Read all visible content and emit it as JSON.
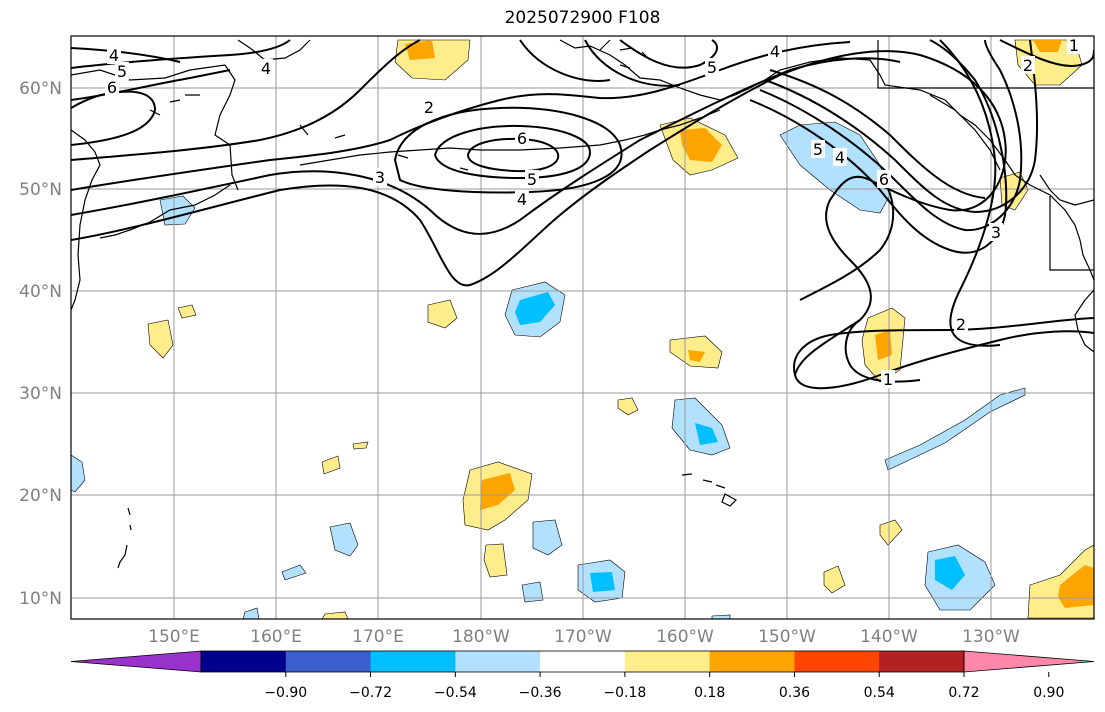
{
  "title": "2025072900 F108",
  "map": {
    "lon_labels": [
      "150°E",
      "160°E",
      "170°E",
      "180°W",
      "170°W",
      "160°W",
      "150°W",
      "140°W",
      "130°W"
    ],
    "lat_labels": [
      "60°N",
      "50°N",
      "40°N",
      "30°N",
      "20°N",
      "10°N"
    ],
    "contour_labels": [
      {
        "text": "4"
      },
      {
        "text": "5"
      },
      {
        "text": "6"
      },
      {
        "text": "4"
      },
      {
        "text": "2"
      },
      {
        "text": "6"
      },
      {
        "text": "5"
      },
      {
        "text": "4"
      },
      {
        "text": "3"
      },
      {
        "text": "4"
      },
      {
        "text": "5"
      },
      {
        "text": "4"
      },
      {
        "text": "5"
      },
      {
        "text": "6"
      },
      {
        "text": "3"
      },
      {
        "text": "2"
      },
      {
        "text": "1"
      },
      {
        "text": "1"
      },
      {
        "text": "2"
      }
    ]
  },
  "colorbar": {
    "colors": [
      "#9932CC",
      "#00008B",
      "#3A5FCD",
      "#00BFFF",
      "#B2E0FF",
      "#FFFFFF",
      "#FFEC8B",
      "#FFA500",
      "#FF4500",
      "#B22222",
      "#FF88AA"
    ],
    "tick_labels": [
      "−0.90",
      "−0.72",
      "−0.54",
      "−0.36",
      "−0.18",
      "0.18",
      "0.36",
      "0.54",
      "0.72",
      "0.90"
    ]
  }
}
